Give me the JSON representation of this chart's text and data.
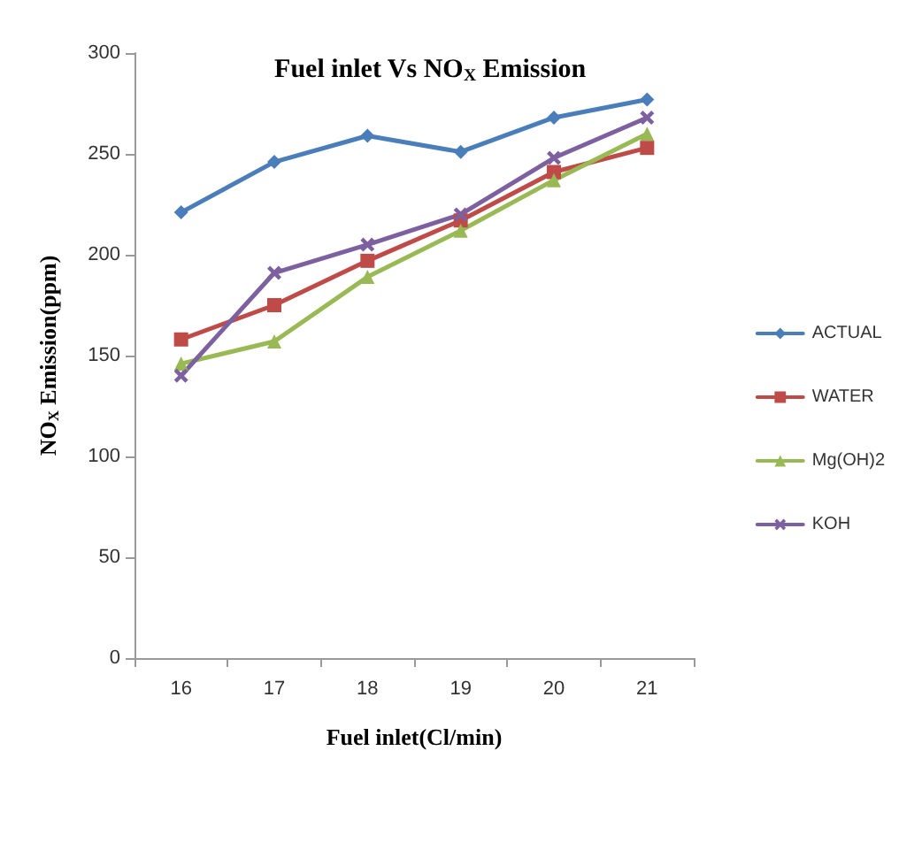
{
  "chart_data": {
    "type": "line",
    "title": "Fuel inlet Vs NO$_{X}$ Emission",
    "xlabel": "Fuel inlet(Cl/min)",
    "ylabel": "NO$_{X}$ Emission(ppm)",
    "categories": [
      "16",
      "17",
      "18",
      "19",
      "20",
      "21"
    ],
    "ylim": [
      0,
      300
    ],
    "yticks": [
      0,
      50,
      100,
      150,
      200,
      250,
      300
    ],
    "grid": false,
    "legend": "right",
    "series": [
      {
        "name": "ACTUAL",
        "color": "#4a7ebb",
        "marker": "diamond",
        "values": [
          221,
          246,
          259,
          251,
          268,
          277
        ]
      },
      {
        "name": "WATER",
        "color": "#be4b48",
        "marker": "square",
        "values": [
          158,
          175,
          197,
          217,
          241,
          253
        ]
      },
      {
        "name": "Mg(OH)2",
        "color": "#98b954",
        "marker": "triangle",
        "values": [
          146,
          157,
          189,
          212,
          237,
          260
        ]
      },
      {
        "name": "KOH",
        "color": "#7d60a0",
        "marker": "cross",
        "values": [
          140,
          191,
          205,
          220,
          248,
          268
        ]
      }
    ]
  }
}
